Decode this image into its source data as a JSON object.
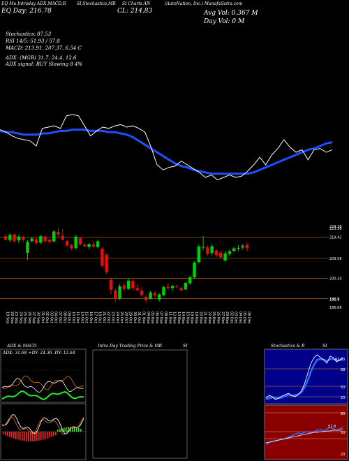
{
  "header": {
    "line1_left": "EQ Mu Intraday ADX,MACD,R",
    "line1_mid": "SI,Stochastics,MR",
    "line1_mid2": "SI Charts AN",
    "line1_right": "(AutoNation, Inc.) MunafaSutra.com",
    "line2_left": "EQ Day: 216.78",
    "line2_mid": "CL: 214.83",
    "line2_right": "Avg Vol: 0.367 M",
    "line3_right": "Day Vol: 0   M",
    "stoch": "Stochastics: 87.53",
    "rsi": "RSI 14/5: 51.93 / 57.8",
    "macd": "MACD: 213.91, 207.37, 6.54  C",
    "adx": "ADX:                        (MGB) 31.7, 24.4, 12.6",
    "adx_signal": "ADX signal:                        BUY Slowing 8 4%"
  },
  "chart_data": {
    "type": "candlestick",
    "price_axis_labels": [
      "224.38",
      "223.36",
      "219.42",
      "209.58",
      "200.24",
      "190.9",
      "190.4",
      "186.88"
    ],
    "price_axis_values": [
      224.38,
      223.36,
      219.42,
      209.58,
      200.24,
      190.9,
      190.4,
      186.88
    ],
    "dates": [
      "19 Sep",
      "20 Sep",
      "23 Sep",
      "24 Sep",
      "25 Sep",
      "26 Sep",
      "27 Sep",
      "30 Sep",
      "01 Oct",
      "02 Oct",
      "03 Oct",
      "04 Oct",
      "07 Oct",
      "08 Oct",
      "09 Oct",
      "10 Oct",
      "11 Oct",
      "14 Oct",
      "15 Oct",
      "16 Oct",
      "17 Oct",
      "18 Oct",
      "21 Oct",
      "22 Oct",
      "23 Oct",
      "24 Oct",
      "25 Oct",
      "28 Oct",
      "29 Oct",
      "30 Oct",
      "31 Oct",
      "01 Nov",
      "04 Nov",
      "05 Nov",
      "06 Nov",
      "07 Nov",
      "08 Nov",
      "11 Nov",
      "12 Nov",
      "13 Nov",
      "14 Nov",
      "15 Nov",
      "18 Nov",
      "19 Nov",
      "20 Nov",
      "21 Nov",
      "22 Nov",
      "25 Nov",
      "26 Nov",
      "27 Nov",
      "29 Nov",
      "02 Dec",
      "03 Dec",
      "04 Dec",
      "05 Dec",
      "06 Dec"
    ],
    "candles": [
      {
        "o": 219.8,
        "h": 220.8,
        "l": 217.8,
        "c": 218.2
      },
      {
        "o": 218.0,
        "h": 221.2,
        "l": 217.2,
        "c": 220.4
      },
      {
        "o": 220.6,
        "h": 221.0,
        "l": 217.0,
        "c": 217.6
      },
      {
        "o": 217.9,
        "h": 220.4,
        "l": 216.6,
        "c": 219.6
      },
      {
        "o": 219.4,
        "h": 220.0,
        "l": 217.4,
        "c": 218.1
      },
      {
        "o": 212.1,
        "h": 218.0,
        "l": 208.8,
        "c": 217.2
      },
      {
        "o": 217.5,
        "h": 219.6,
        "l": 216.8,
        "c": 218.8
      },
      {
        "o": 218.4,
        "h": 219.2,
        "l": 215.7,
        "c": 216.6
      },
      {
        "o": 216.8,
        "h": 220.4,
        "l": 216.2,
        "c": 219.8
      },
      {
        "o": 219.6,
        "h": 220.0,
        "l": 216.8,
        "c": 217.5
      },
      {
        "o": 218.2,
        "h": 218.8,
        "l": 216.4,
        "c": 217.2
      },
      {
        "o": 217.4,
        "h": 222.6,
        "l": 216.8,
        "c": 222.0
      },
      {
        "o": 221.8,
        "h": 223.8,
        "l": 219.6,
        "c": 220.6
      },
      {
        "o": 220.0,
        "h": 223.0,
        "l": 217.8,
        "c": 218.2
      },
      {
        "o": 217.6,
        "h": 218.0,
        "l": 214.8,
        "c": 215.5
      },
      {
        "o": 215.6,
        "h": 216.2,
        "l": 213.4,
        "c": 214.2
      },
      {
        "o": 214.3,
        "h": 220.4,
        "l": 213.8,
        "c": 219.6
      },
      {
        "o": 219.0,
        "h": 219.6,
        "l": 215.4,
        "c": 216.0
      },
      {
        "o": 215.8,
        "h": 217.0,
        "l": 214.8,
        "c": 215.2
      },
      {
        "o": 214.8,
        "h": 216.6,
        "l": 213.8,
        "c": 216.2
      },
      {
        "o": 216.0,
        "h": 217.6,
        "l": 214.4,
        "c": 215.0
      },
      {
        "o": 214.8,
        "h": 218.2,
        "l": 214.2,
        "c": 217.4
      },
      {
        "o": 214.0,
        "h": 214.8,
        "l": 205.4,
        "c": 206.2
      },
      {
        "o": 211.2,
        "h": 211.8,
        "l": 202.4,
        "c": 203.2
      },
      {
        "o": 199.6,
        "h": 200.6,
        "l": 193.0,
        "c": 195.0
      },
      {
        "o": 194.6,
        "h": 195.8,
        "l": 189.4,
        "c": 190.8
      },
      {
        "o": 191.0,
        "h": 197.6,
        "l": 190.2,
        "c": 196.6
      },
      {
        "o": 197.0,
        "h": 198.4,
        "l": 194.4,
        "c": 195.4
      },
      {
        "o": 195.4,
        "h": 200.2,
        "l": 195.0,
        "c": 199.2
      },
      {
        "o": 199.0,
        "h": 199.6,
        "l": 194.8,
        "c": 195.8
      },
      {
        "o": 195.8,
        "h": 197.6,
        "l": 194.4,
        "c": 194.8
      },
      {
        "o": 194.6,
        "h": 196.2,
        "l": 191.8,
        "c": 192.6
      },
      {
        "o": 191.8,
        "h": 192.6,
        "l": 188.8,
        "c": 190.2
      },
      {
        "o": 190.8,
        "h": 194.6,
        "l": 190.4,
        "c": 193.8
      },
      {
        "o": 193.4,
        "h": 194.4,
        "l": 191.6,
        "c": 192.4
      },
      {
        "o": 190.6,
        "h": 193.4,
        "l": 189.6,
        "c": 192.8
      },
      {
        "o": 192.6,
        "h": 196.8,
        "l": 192.0,
        "c": 196.2
      },
      {
        "o": 196.4,
        "h": 198.0,
        "l": 195.2,
        "c": 195.8
      },
      {
        "o": 195.8,
        "h": 197.2,
        "l": 194.4,
        "c": 196.8
      },
      {
        "o": 196.6,
        "h": 197.6,
        "l": 195.6,
        "c": 196.2
      },
      {
        "o": 195.8,
        "h": 196.6,
        "l": 194.2,
        "c": 194.8
      },
      {
        "o": 195.2,
        "h": 198.6,
        "l": 194.8,
        "c": 198.2
      },
      {
        "o": 198.0,
        "h": 201.6,
        "l": 197.4,
        "c": 200.8
      },
      {
        "o": 200.8,
        "h": 208.2,
        "l": 200.2,
        "c": 207.6
      },
      {
        "o": 207.8,
        "h": 215.8,
        "l": 207.2,
        "c": 215.0
      },
      {
        "o": 214.8,
        "h": 219.8,
        "l": 213.2,
        "c": 214.8
      },
      {
        "o": 214.6,
        "h": 215.6,
        "l": 210.8,
        "c": 211.6
      },
      {
        "o": 212.0,
        "h": 216.4,
        "l": 210.8,
        "c": 215.2
      },
      {
        "o": 213.2,
        "h": 213.8,
        "l": 210.2,
        "c": 211.0
      },
      {
        "o": 212.2,
        "h": 213.2,
        "l": 209.6,
        "c": 210.0
      },
      {
        "o": 208.6,
        "h": 212.8,
        "l": 208.2,
        "c": 211.8
      },
      {
        "o": 211.6,
        "h": 213.6,
        "l": 210.8,
        "c": 212.8
      },
      {
        "o": 213.0,
        "h": 214.8,
        "l": 212.4,
        "c": 214.2
      },
      {
        "o": 214.0,
        "h": 215.8,
        "l": 212.8,
        "c": 214.4
      },
      {
        "o": 214.6,
        "h": 216.2,
        "l": 213.6,
        "c": 215.4
      },
      {
        "o": 215.8,
        "h": 216.8,
        "l": 212.8,
        "c": 214.2
      }
    ],
    "overlay_price": [
      0.42,
      0.44,
      0.47,
      0.49,
      0.5,
      0.51,
      0.55,
      0.41,
      0.4,
      0.39,
      0.41,
      0.31,
      0.3,
      0.31,
      0.39,
      0.47,
      0.43,
      0.4,
      0.41,
      0.39,
      0.38,
      0.4,
      0.39,
      0.41,
      0.44,
      0.56,
      0.7,
      0.74,
      0.72,
      0.71,
      0.67,
      0.7,
      0.73,
      0.76,
      0.8,
      0.78,
      0.82,
      0.8,
      0.78,
      0.8,
      0.79,
      0.75,
      0.7,
      0.64,
      0.7,
      0.62,
      0.57,
      0.5,
      0.56,
      0.6,
      0.58,
      0.66,
      0.58,
      0.57,
      0.6,
      0.58
    ],
    "overlay_ma": [
      0.43,
      0.44,
      0.44,
      0.45,
      0.46,
      0.46,
      0.46,
      0.45,
      0.45,
      0.44,
      0.43,
      0.43,
      0.42,
      0.42,
      0.42,
      0.43,
      0.43,
      0.43,
      0.44,
      0.44,
      0.45,
      0.46,
      0.48,
      0.51,
      0.54,
      0.57,
      0.6,
      0.63,
      0.66,
      0.69,
      0.71,
      0.72,
      0.74,
      0.75,
      0.76,
      0.77,
      0.77,
      0.77,
      0.77,
      0.77,
      0.77,
      0.77,
      0.76,
      0.74,
      0.72,
      0.7,
      0.68,
      0.66,
      0.64,
      0.62,
      0.6,
      0.58,
      0.57,
      0.55,
      0.53,
      0.52
    ],
    "panels": {
      "adx_title": "ADX  & MACD",
      "adx_values": "ADX: 31.68  +DY: 24.36  -DY: 12.64",
      "intraday_title": "Intra  Day Trading Price  & MR",
      "intraday_title2": "SI",
      "stoch_title": "Stochastics & R",
      "stoch_title2": "SI",
      "stoch_labels": [
        "88",
        "50",
        "20"
      ],
      "stoch_marker": "87.53",
      "rsi_labels": [
        "80",
        "50",
        "20"
      ],
      "rsi_marker": "57.8"
    }
  }
}
